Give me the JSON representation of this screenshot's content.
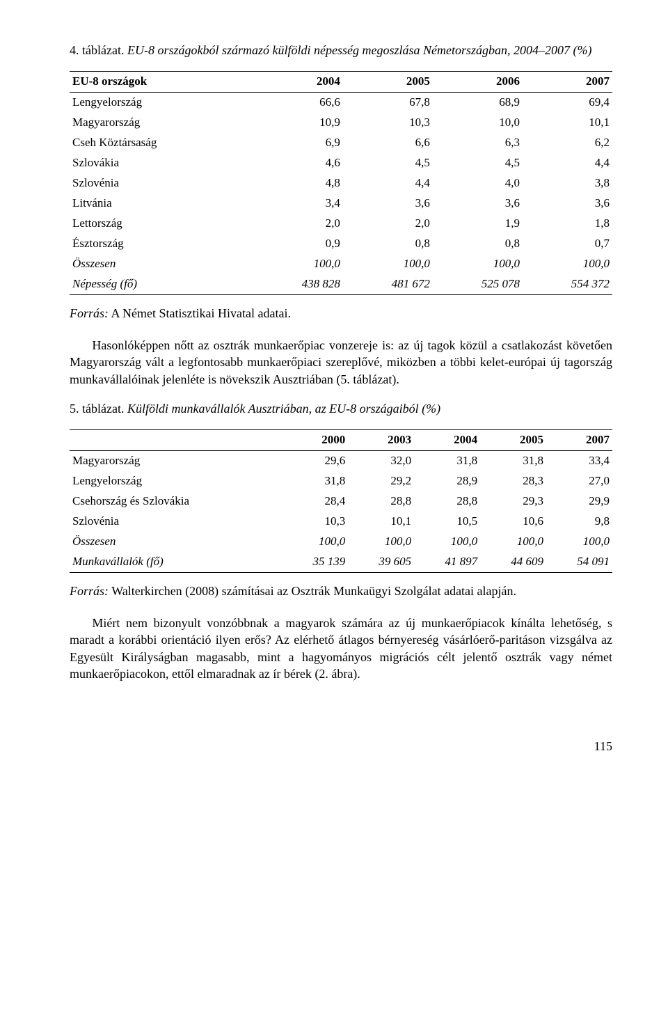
{
  "table4": {
    "caption_label": "4. táblázat.",
    "caption_text": " EU-8 országokból származó külföldi népesség megoszlása Németországban, 2004–2007 (%)",
    "header": [
      "EU-8 országok",
      "2004",
      "2005",
      "2006",
      "2007"
    ],
    "rows": [
      {
        "cells": [
          "Lengyelország",
          "66,6",
          "67,8",
          "68,9",
          "69,4"
        ],
        "italic": false
      },
      {
        "cells": [
          "Magyarország",
          "10,9",
          "10,3",
          "10,0",
          "10,1"
        ],
        "italic": false
      },
      {
        "cells": [
          "Cseh Köztársaság",
          "6,9",
          "6,6",
          "6,3",
          "6,2"
        ],
        "italic": false
      },
      {
        "cells": [
          "Szlovákia",
          "4,6",
          "4,5",
          "4,5",
          "4,4"
        ],
        "italic": false
      },
      {
        "cells": [
          "Szlovénia",
          "4,8",
          "4,4",
          "4,0",
          "3,8"
        ],
        "italic": false
      },
      {
        "cells": [
          "Litvánia",
          "3,4",
          "3,6",
          "3,6",
          "3,6"
        ],
        "italic": false
      },
      {
        "cells": [
          "Lettország",
          "2,0",
          "2,0",
          "1,9",
          "1,8"
        ],
        "italic": false
      },
      {
        "cells": [
          "Észtország",
          "0,9",
          "0,8",
          "0,8",
          "0,7"
        ],
        "italic": false
      },
      {
        "cells": [
          "Összesen",
          "100,0",
          "100,0",
          "100,0",
          "100,0"
        ],
        "italic": true
      },
      {
        "cells": [
          "Népesség (fő)",
          "438 828",
          "481 672",
          "525 078",
          "554 372"
        ],
        "italic": true
      }
    ],
    "source_label": "Forrás:",
    "source_text": " A Német Statisztikai Hivatal adatai."
  },
  "para1": "Hasonlóképpen nőtt az osztrák munkaerőpiac vonzereje is: az új tagok közül a csatlakozást követően Magyarország vált a legfontosabb munkaerőpiaci szereplővé, miközben a többi kelet-európai új tagország munkavállalóinak jelenléte is növekszik Ausztriában (5. táblázat).",
  "table5": {
    "caption_label": "5. táblázat.",
    "caption_text": " Külföldi munkavállalók Ausztriában, az EU-8 országaiból (%)",
    "header": [
      "",
      "2000",
      "2003",
      "2004",
      "2005",
      "2007"
    ],
    "rows": [
      {
        "cells": [
          "Magyarország",
          "29,6",
          "32,0",
          "31,8",
          "31,8",
          "33,4"
        ],
        "italic": false
      },
      {
        "cells": [
          "Lengyelország",
          "31,8",
          "29,2",
          "28,9",
          "28,3",
          "27,0"
        ],
        "italic": false
      },
      {
        "cells": [
          "Csehország és Szlovákia",
          "28,4",
          "28,8",
          "28,8",
          "29,3",
          "29,9"
        ],
        "italic": false
      },
      {
        "cells": [
          "Szlovénia",
          "10,3",
          "10,1",
          "10,5",
          "10,6",
          "9,8"
        ],
        "italic": false
      },
      {
        "cells": [
          "Összesen",
          "100,0",
          "100,0",
          "100,0",
          "100,0",
          "100,0"
        ],
        "italic": true
      },
      {
        "cells": [
          "Munkavállalók (fő)",
          "35 139",
          "39 605",
          "41 897",
          "44 609",
          "54 091"
        ],
        "italic": true
      }
    ],
    "source_label": "Forrás:",
    "source_text": " Walterkirchen (2008) számításai az Osztrák Munkaügyi Szolgálat adatai alapján."
  },
  "para2": "Miért nem bizonyult vonzóbbnak a magyarok számára az új munkaerőpiacok kínálta lehetőség, s maradt a korábbi orientáció ilyen erős? Az elérhető átlagos bérnyereség vásárlóerő-paritáson vizsgálva az Egyesült Királyságban magasabb, mint a hagyományos migrációs célt jelentő osztrák vagy német munkaerőpiacokon, ettől elmaradnak az ír bérek (2. ábra).",
  "pagenum": "115"
}
